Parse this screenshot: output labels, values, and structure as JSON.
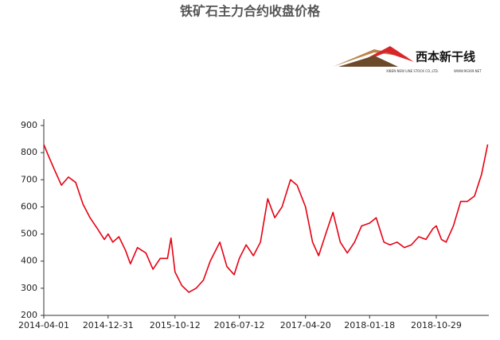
{
  "chart_data": {
    "type": "line",
    "title": "铁矿石主力合约收盘价格",
    "logo_text": "西本新干线",
    "logo_subtext": "XIBEN NEW LINE STOCK CO.,LTD.",
    "logo_url": "WWW.96369.NET",
    "x": [
      "2014-04-01",
      "2014-04-20",
      "2014-05-15",
      "2014-06-15",
      "2014-07-15",
      "2014-08-15",
      "2014-09-15",
      "2014-10-15",
      "2014-11-15",
      "2014-12-15",
      "2014-12-31",
      "2015-01-20",
      "2015-02-15",
      "2015-03-15",
      "2015-04-05",
      "2015-05-05",
      "2015-06-10",
      "2015-07-10",
      "2015-08-10",
      "2015-09-10",
      "2015-09-25",
      "2015-10-12",
      "2015-11-10",
      "2015-12-10",
      "2016-01-10",
      "2016-02-10",
      "2016-03-10",
      "2016-04-20",
      "2016-05-20",
      "2016-06-20",
      "2016-07-12",
      "2016-08-10",
      "2016-09-10",
      "2016-10-10",
      "2016-11-10",
      "2016-12-10",
      "2017-01-10",
      "2017-02-15",
      "2017-03-15",
      "2017-04-20",
      "2017-05-20",
      "2017-06-15",
      "2017-07-15",
      "2017-08-15",
      "2017-09-15",
      "2017-10-15",
      "2017-11-15",
      "2017-12-15",
      "2018-01-18",
      "2018-02-15",
      "2018-03-20",
      "2018-04-15",
      "2018-05-15",
      "2018-06-15",
      "2018-07-15",
      "2018-08-15",
      "2018-09-15",
      "2018-10-15",
      "2018-10-29",
      "2018-11-20",
      "2018-12-10",
      "2019-01-10",
      "2019-02-10",
      "2019-03-10",
      "2019-04-10",
      "2019-05-10",
      "2019-06-05"
    ],
    "series": [
      {
        "name": "收盘价",
        "color": "#e60012",
        "values": [
          830,
          790,
          740,
          680,
          710,
          690,
          610,
          560,
          520,
          480,
          500,
          470,
          490,
          440,
          390,
          450,
          430,
          370,
          410,
          410,
          485,
          360,
          310,
          285,
          300,
          330,
          400,
          470,
          380,
          350,
          410,
          460,
          420,
          470,
          630,
          560,
          600,
          700,
          680,
          600,
          470,
          420,
          500,
          580,
          470,
          430,
          470,
          530,
          540,
          560,
          470,
          460,
          470,
          450,
          460,
          490,
          480,
          520,
          530,
          480,
          470,
          530,
          620,
          620,
          640,
          720,
          830
        ]
      }
    ],
    "xlim": [
      "2014-04-01",
      "2019-06-10"
    ],
    "xticks": [
      "2014-04-01",
      "2014-12-31",
      "2015-10-12",
      "2016-07-12",
      "2017-04-20",
      "2018-01-18",
      "2018-10-29"
    ],
    "ylim": [
      200,
      900
    ],
    "yticks": [
      200,
      300,
      400,
      500,
      600,
      700,
      800,
      900
    ],
    "grid": false
  }
}
